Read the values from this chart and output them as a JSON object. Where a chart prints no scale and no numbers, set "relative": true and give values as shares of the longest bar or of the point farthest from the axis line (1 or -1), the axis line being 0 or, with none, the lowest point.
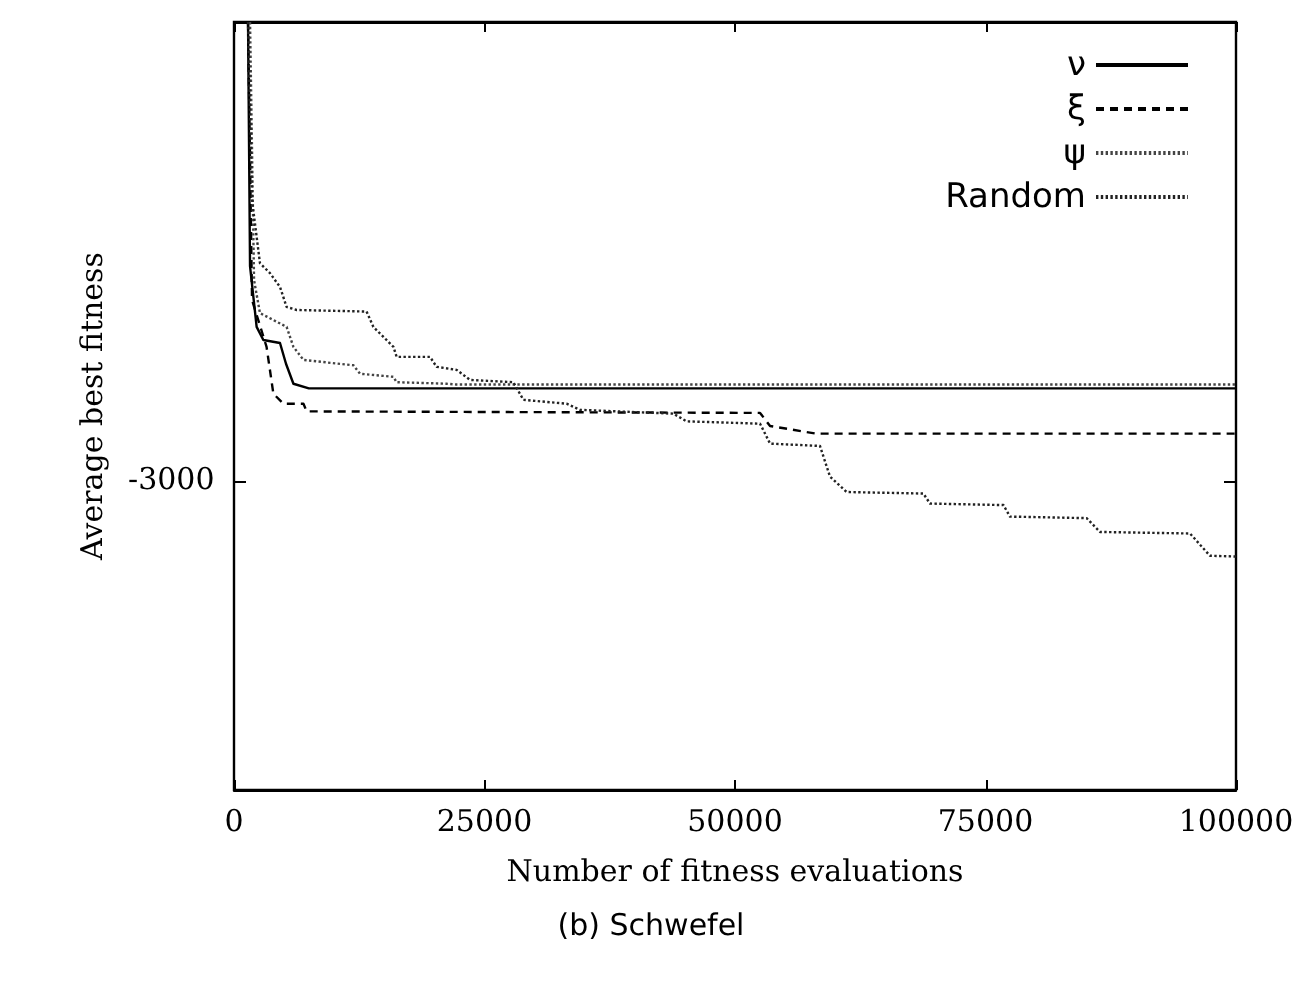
{
  "chart_data": {
    "type": "line",
    "relative": true,
    "xlabel": "Number of fitness evaluations",
    "ylabel": "Average best fitness",
    "annotations": [
      "-3000",
      "(b) Schwefel"
    ],
    "xlim": [
      0,
      100000
    ],
    "xticks": [
      0,
      25000,
      50000,
      75000,
      100000
    ],
    "grid": false,
    "legend": "top right",
    "marker": "none",
    "series": [
      {
        "name": "ν",
        "color": "#000000",
        "line_style": "solid",
        "x": [
          1400,
          1600,
          2260,
          2930,
          4590,
          5190,
          5930,
          7470,
          100000
        ],
        "values": [
          1.0,
          0.682,
          0.603,
          0.586,
          0.582,
          0.555,
          0.529,
          0.523,
          0.523
        ]
      },
      {
        "name": "ξ",
        "color": "#000000",
        "line_style": "dashed",
        "x": [
          1400,
          1800,
          3250,
          3930,
          4930,
          6930,
          7250,
          52500,
          53500,
          58100,
          100000
        ],
        "values": [
          1.0,
          0.638,
          0.577,
          0.516,
          0.503,
          0.503,
          0.493,
          0.491,
          0.474,
          0.464,
          0.464
        ]
      },
      {
        "name": "ψ",
        "color": "#444444",
        "line_style": "dotted",
        "x": [
          1600,
          2000,
          2590,
          5250,
          5930,
          6930,
          11920,
          12580,
          15910,
          16230,
          21220,
          22160,
          100000
        ],
        "values": [
          1.0,
          0.664,
          0.621,
          0.603,
          0.577,
          0.56,
          0.553,
          0.542,
          0.538,
          0.531,
          0.529,
          0.528,
          0.528
        ]
      },
      {
        "name": "Random",
        "color": "#222222",
        "line_style": "dotted",
        "x": [
          1400,
          1800,
          2590,
          3590,
          4590,
          5250,
          6250,
          13230,
          13910,
          14910,
          15910,
          16230,
          19560,
          20220,
          22220,
          23550,
          27880,
          28880,
          33190,
          34530,
          43850,
          45170,
          52500,
          53500,
          58480,
          59480,
          61140,
          68800,
          69460,
          76790,
          77440,
          85090,
          86430,
          95410,
          97400,
          100000
        ],
        "values": [
          1.0,
          0.768,
          0.686,
          0.673,
          0.655,
          0.629,
          0.625,
          0.623,
          0.603,
          0.59,
          0.577,
          0.564,
          0.564,
          0.551,
          0.547,
          0.534,
          0.531,
          0.508,
          0.503,
          0.495,
          0.49,
          0.48,
          0.477,
          0.451,
          0.448,
          0.408,
          0.388,
          0.386,
          0.373,
          0.371,
          0.356,
          0.354,
          0.336,
          0.334,
          0.305,
          0.304
        ]
      }
    ]
  }
}
